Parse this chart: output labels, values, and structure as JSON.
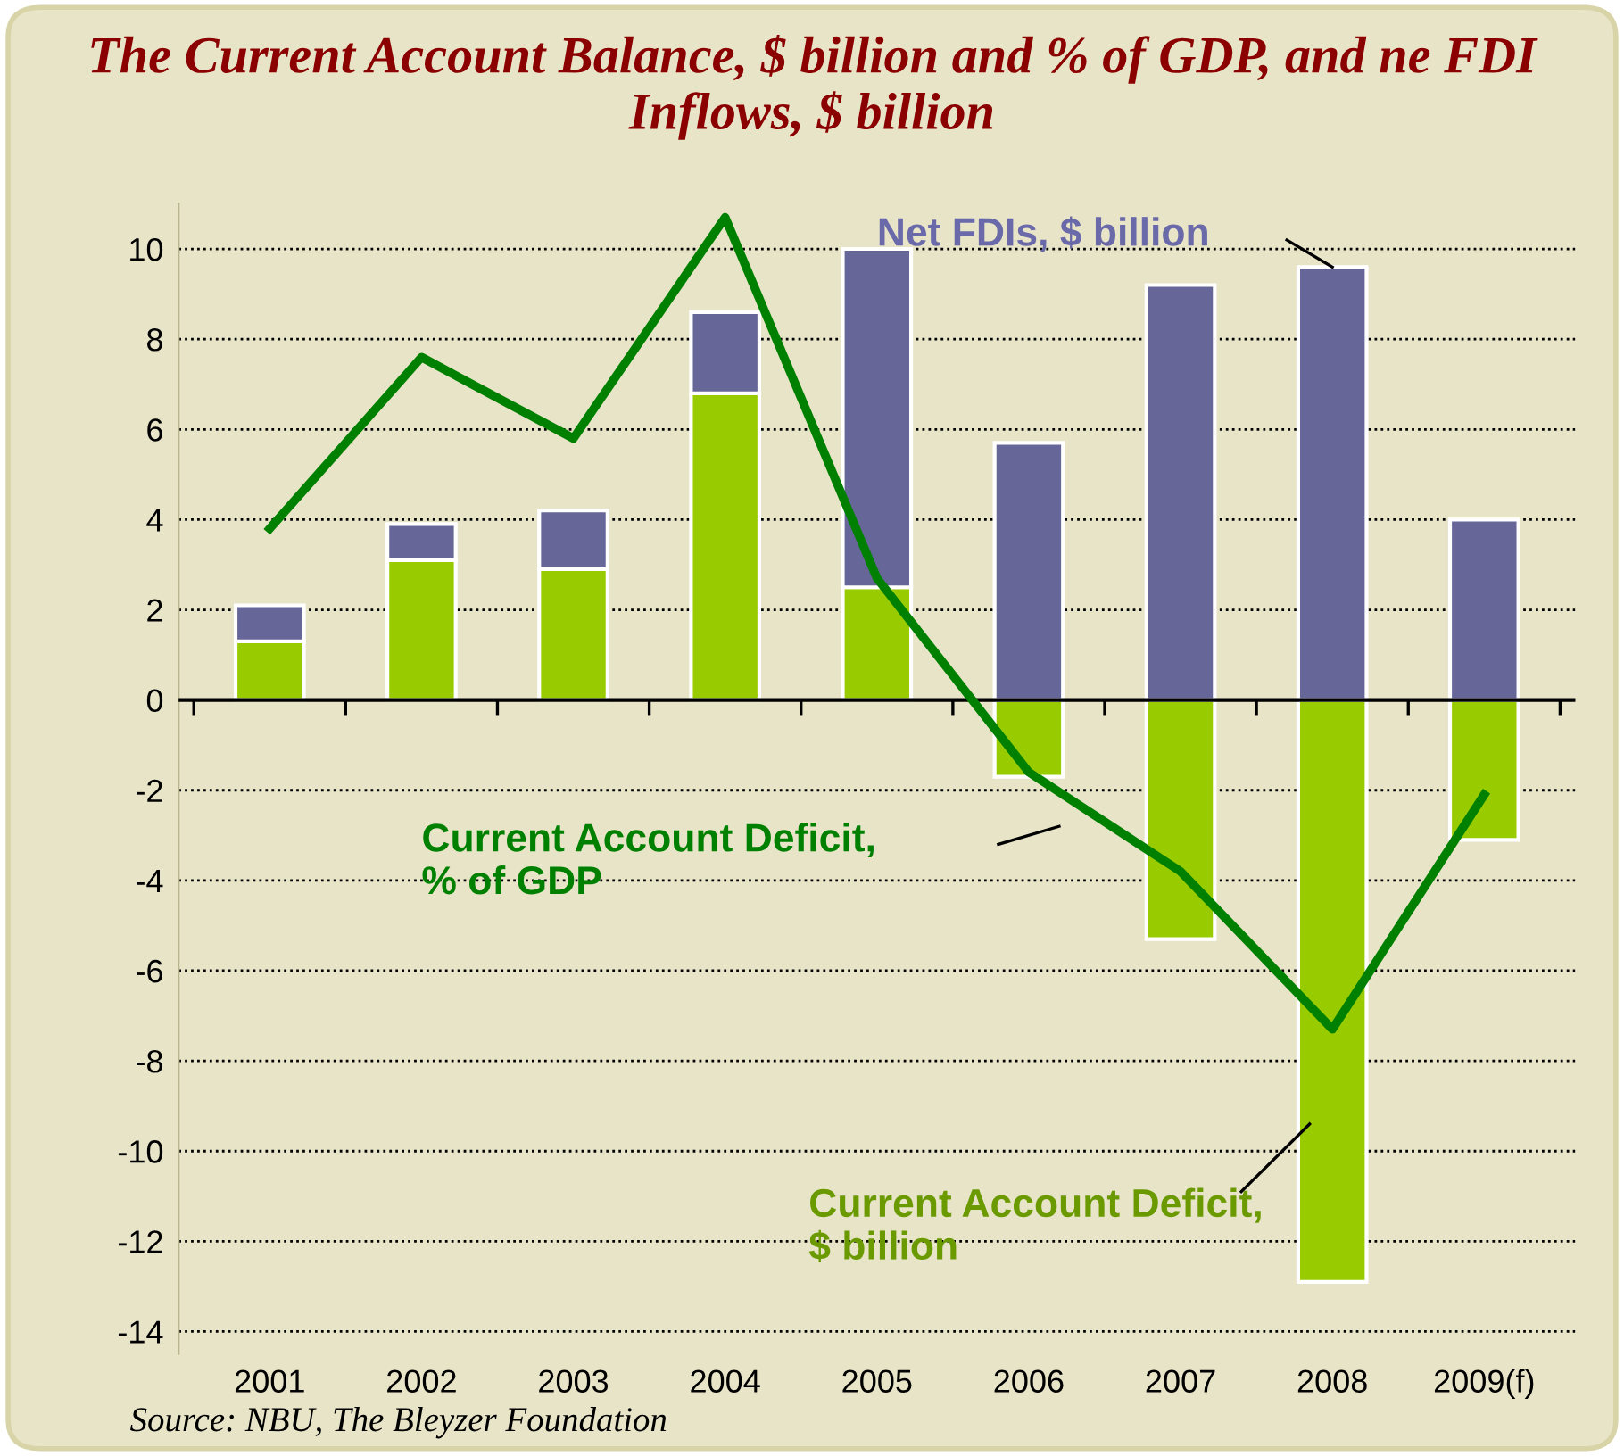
{
  "chart_data": {
    "type": "bar",
    "title": "The Current Account Balance, $ billion and % of GDP, and ne FDI Inflows, $ billion",
    "categories": [
      "2001",
      "2002",
      "2003",
      "2004",
      "2005",
      "2006",
      "2007",
      "2008",
      "2009(f)"
    ],
    "stacked": true,
    "series": [
      {
        "name": "Current Account Deficit,\n$ billion",
        "color": "#99cc00",
        "values": [
          1.3,
          3.1,
          2.9,
          6.8,
          2.5,
          -1.7,
          -5.3,
          -12.9,
          -3.1
        ]
      },
      {
        "name": "Net FDIs, $ billion",
        "color": "#666699",
        "values": [
          0.8,
          0.8,
          1.3,
          1.8,
          7.5,
          5.7,
          9.2,
          9.6,
          4.0
        ]
      },
      {
        "name": "Current Account Deficit,\n% of GDP",
        "type": "line",
        "color": "#008000",
        "values": [
          3.8,
          7.6,
          5.8,
          10.7,
          2.7,
          -1.6,
          -3.8,
          -7.3,
          -2.1
        ]
      }
    ],
    "ylim": [
      -14.5,
      11
    ],
    "yticks": [
      -14,
      -12,
      -10,
      -8,
      -6,
      -4,
      -2,
      0,
      2,
      4,
      6,
      8,
      10
    ],
    "grid": "y",
    "annotations": [
      "Source: NBU, The Bleyzer Foundation"
    ]
  }
}
